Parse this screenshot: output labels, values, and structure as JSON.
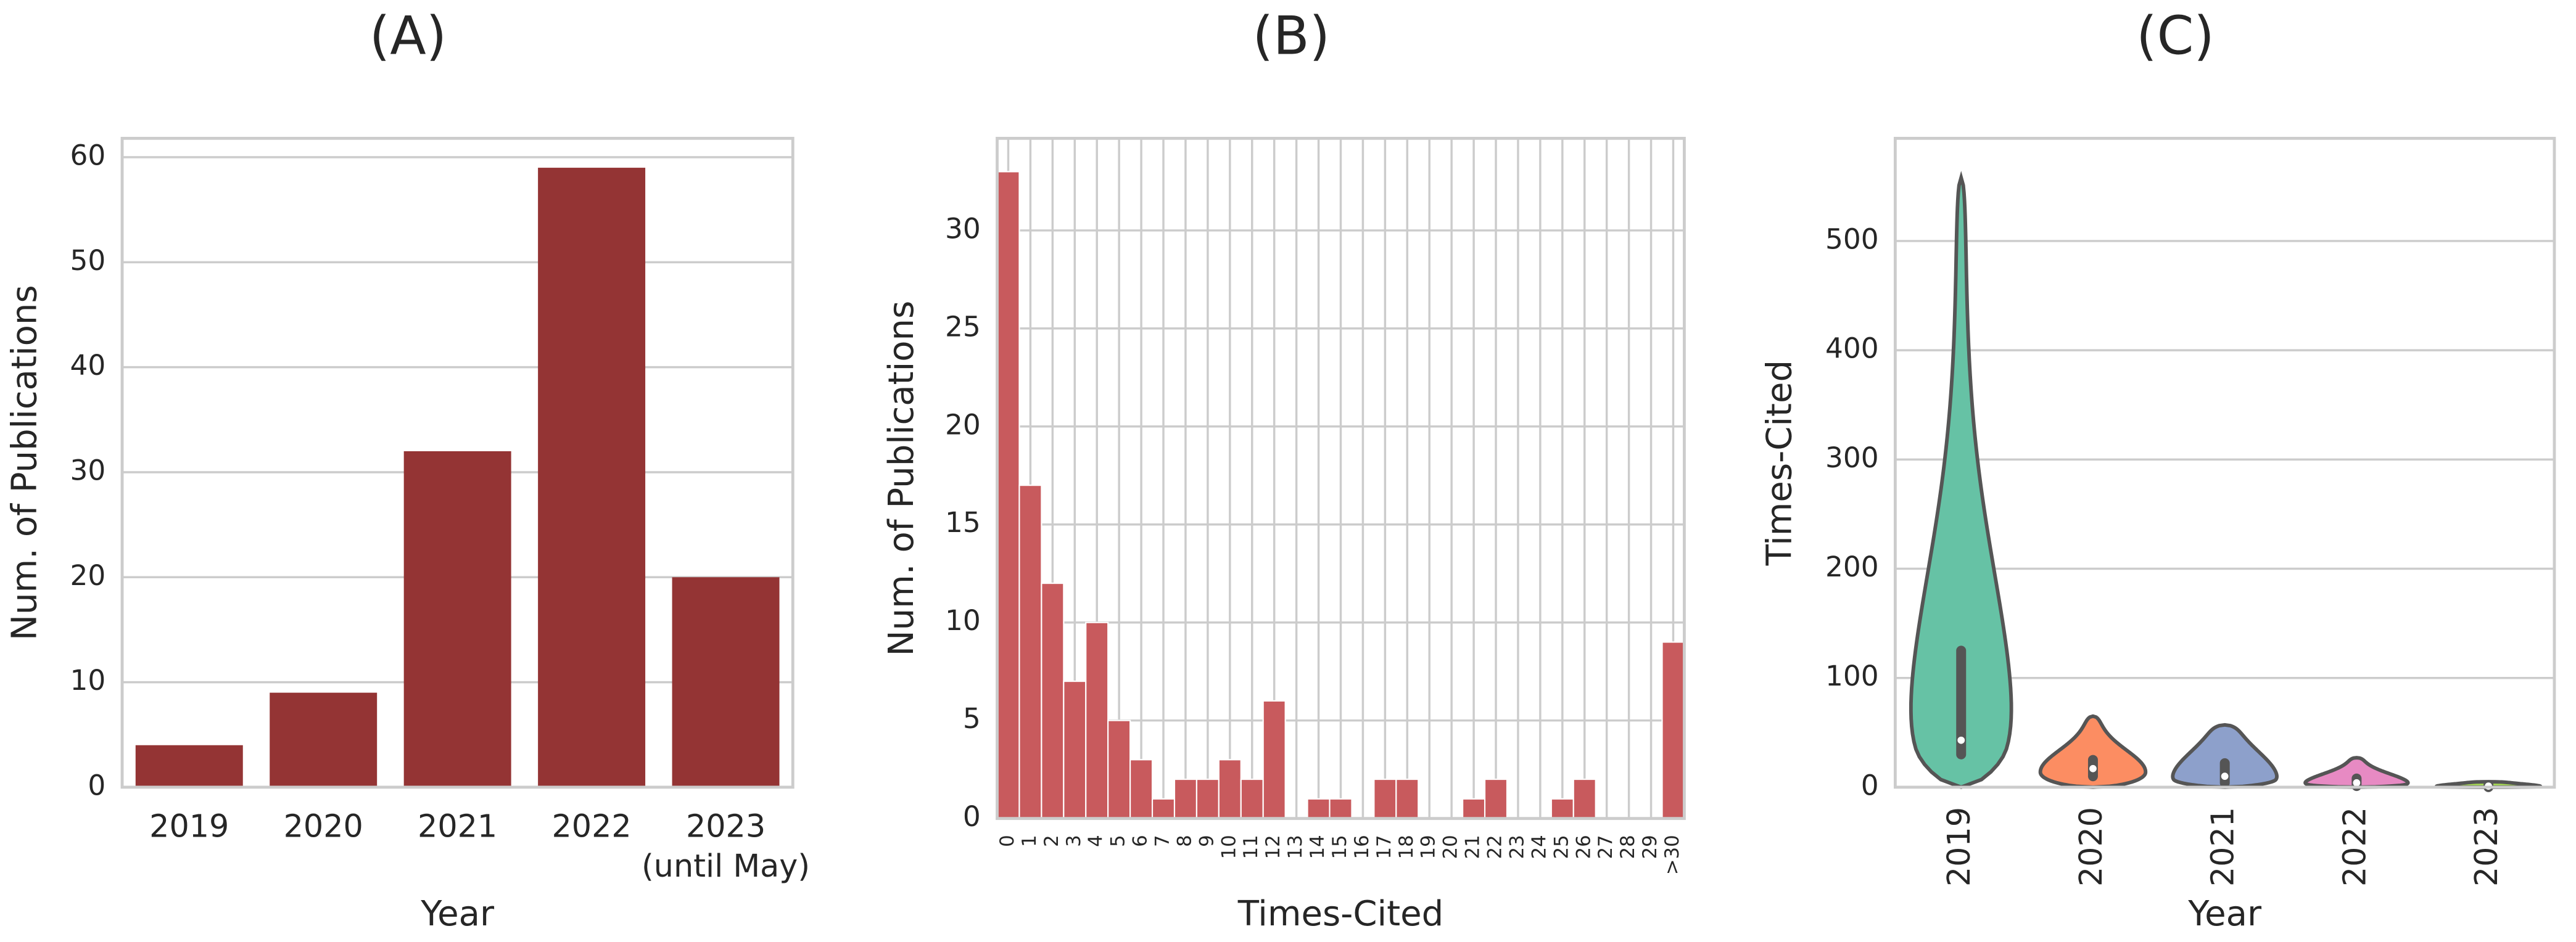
{
  "chart_data": [
    {
      "type": "bar",
      "title": "(A)",
      "xlabel": "Year",
      "ylabel": "Num. of Publications",
      "categories": [
        "2019",
        "2020",
        "2021",
        "2022",
        "2023 (until May)"
      ],
      "values": [
        4,
        9,
        32,
        59,
        20
      ],
      "color": "#943434",
      "ylim": [
        0,
        61.8
      ],
      "yticks": [
        0,
        10,
        20,
        30,
        40,
        50,
        60
      ],
      "grid": true,
      "xgrid": false
    },
    {
      "type": "histogram",
      "title": "(B)",
      "xlabel": "Times-Cited",
      "ylabel": "Num. of Publications",
      "categories": [
        "0",
        "1",
        "2",
        "3",
        "4",
        "5",
        "6",
        "7",
        "8",
        "9",
        "10",
        "11",
        "12",
        "13",
        "14",
        "15",
        "16",
        "17",
        "18",
        "19",
        "20",
        "21",
        "22",
        "23",
        "24",
        "25",
        "26",
        "27",
        "28",
        "29",
        ">30"
      ],
      "values": [
        33,
        17,
        12,
        7,
        10,
        5,
        3,
        1,
        2,
        2,
        3,
        2,
        6,
        0,
        1,
        1,
        0,
        2,
        2,
        0,
        0,
        1,
        2,
        0,
        0,
        1,
        2,
        0,
        0,
        0,
        9
      ],
      "color": "#c85a5d",
      "ylim": [
        0,
        34.7
      ],
      "yticks": [
        0,
        5,
        10,
        15,
        20,
        25,
        30
      ],
      "grid": true,
      "xgrid": true
    },
    {
      "type": "violin",
      "title": "(C)",
      "xlabel": "Year",
      "ylabel": "Times-Cited",
      "categories": [
        "2019",
        "2020",
        "2021",
        "2022",
        "2023"
      ],
      "colors": [
        "#66c2a5",
        "#fc8d62",
        "#8da0cb",
        "#e78ac3",
        "#a6d854"
      ],
      "stats": [
        {
          "min": 0,
          "q1": 30,
          "median": 43,
          "q3": 125,
          "max": 558
        },
        {
          "min": 0,
          "q1": 10,
          "median": 17,
          "q3": 25,
          "max": 65
        },
        {
          "min": 0,
          "q1": 4,
          "median": 10,
          "q3": 22,
          "max": 57
        },
        {
          "min": 0,
          "q1": 1,
          "median": 4,
          "q3": 8,
          "max": 27
        },
        {
          "min": 0,
          "q1": 0,
          "median": 1,
          "q3": 2,
          "max": 5
        }
      ],
      "ylim": [
        0,
        594
      ],
      "yticks": [
        0,
        100,
        200,
        300,
        400,
        500
      ],
      "grid": true,
      "xgrid": false
    }
  ]
}
